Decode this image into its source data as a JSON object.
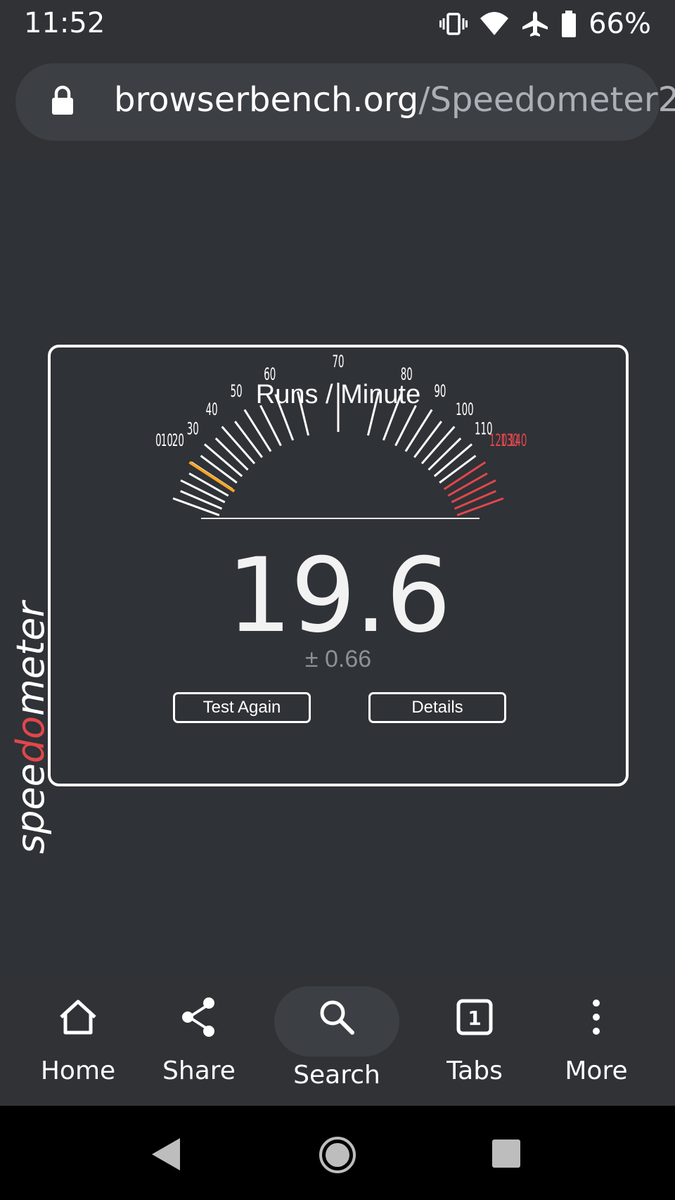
{
  "status_bar": {
    "time": "11:52",
    "battery": "66%",
    "icons": [
      "vibrate-icon",
      "wifi-icon",
      "airplane-icon",
      "battery-icon"
    ]
  },
  "browser": {
    "url_host": "browserbench.org",
    "url_path": "/Speedometer2"
  },
  "speedometer": {
    "logo_text": "speedometer",
    "title": "Runs / Minute",
    "score": "19.6",
    "margin": "± 0.66",
    "test_again_label": "Test Again",
    "details_label": "Details",
    "gauge": {
      "labels": [
        "0",
        "10",
        "20",
        "30",
        "40",
        "50",
        "60",
        "70",
        "80",
        "90",
        "100",
        "110",
        "120",
        "130",
        "140"
      ],
      "current_value": 19.6,
      "max_value": 140,
      "red_from": 120,
      "colors": {
        "tick": "#ffffff",
        "needle": "#f5a623",
        "red": "#e0474c"
      }
    }
  },
  "bottom_nav": {
    "items": [
      {
        "label": "Home",
        "icon": "home-icon"
      },
      {
        "label": "Share",
        "icon": "share-icon"
      },
      {
        "label": "Search",
        "icon": "search-icon"
      },
      {
        "label": "Tabs",
        "icon": "tabs-icon",
        "count": "1"
      },
      {
        "label": "More",
        "icon": "more-vert-icon"
      }
    ]
  },
  "colors": {
    "background": "#2f3236",
    "toolbar": "#303236",
    "url_bar": "#3c3f43",
    "accent_red": "#e0474c"
  }
}
